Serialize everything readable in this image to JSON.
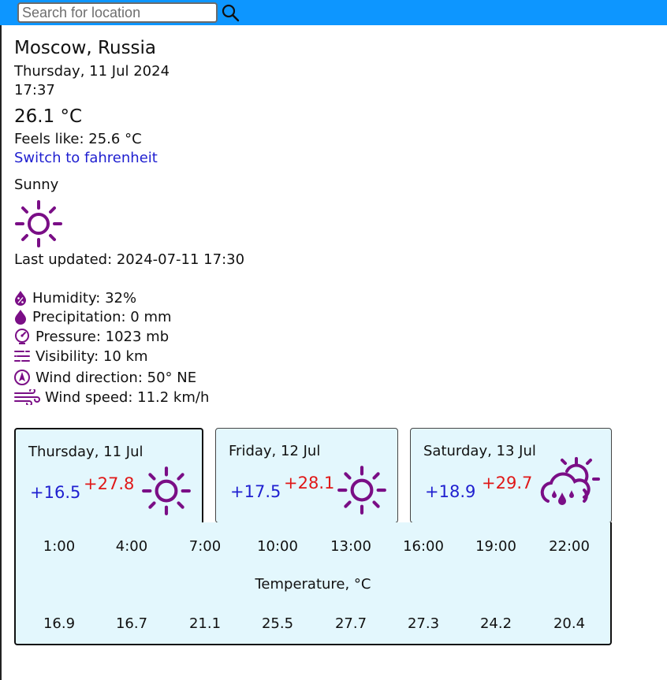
{
  "colors": {
    "accent": "#0d96ff",
    "icon": "#7a0e86",
    "min_temp": "#1f1fd0",
    "max_temp": "#e01818",
    "card_bg": "#e3f7fd"
  },
  "search": {
    "placeholder": "Search for location",
    "value": "",
    "icon": "search-icon"
  },
  "current": {
    "location": "Moscow, Russia",
    "date": "Thursday, 11 Jul 2024",
    "time": "17:37",
    "temperature": "26.1 °C",
    "feels_like": "Feels like: 25.6 °C",
    "unit_toggle": "Switch to fahrenheit",
    "condition": "Sunny",
    "condition_icon": "sun-icon",
    "last_updated": "Last updated: 2024-07-11 17:30"
  },
  "details": [
    {
      "icon": "humidity-icon",
      "text": "Humidity: 32%"
    },
    {
      "icon": "precipitation-icon",
      "text": "Precipitation: 0 mm"
    },
    {
      "icon": "pressure-icon",
      "text": "Pressure: 1023 mb"
    },
    {
      "icon": "visibility-icon",
      "text": "Visibility: 10 km"
    },
    {
      "icon": "wind-direction-icon",
      "text": "Wind direction: 50° NE"
    },
    {
      "icon": "wind-speed-icon",
      "text": "Wind speed: 11.2 km/h"
    }
  ],
  "forecast": [
    {
      "date": "Thursday, 11 Jul",
      "min": "+16.5",
      "max": "+27.8",
      "icon": "sun-icon",
      "selected": true
    },
    {
      "date": "Friday, 12 Jul",
      "min": "+17.5",
      "max": "+28.1",
      "icon": "sun-icon",
      "selected": false
    },
    {
      "date": "Saturday, 13 Jul",
      "min": "+18.9",
      "max": "+29.7",
      "icon": "cloud-sun-rain-icon",
      "selected": false
    }
  ],
  "hourly": {
    "caption": "Temperature, °C",
    "hours": [
      "1:00",
      "4:00",
      "7:00",
      "10:00",
      "13:00",
      "16:00",
      "19:00",
      "22:00"
    ],
    "temps": [
      "16.9",
      "16.7",
      "21.1",
      "25.5",
      "27.7",
      "27.3",
      "24.2",
      "20.4"
    ]
  }
}
